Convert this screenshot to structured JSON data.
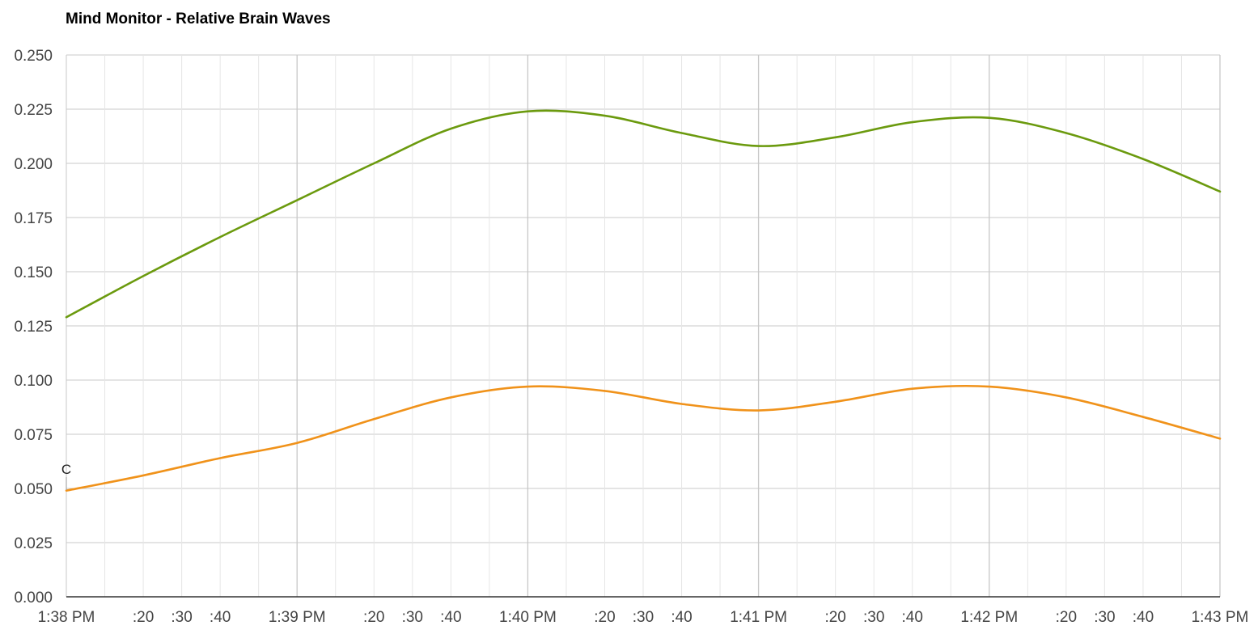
{
  "chart_data": {
    "type": "line",
    "title": "Mind Monitor - Relative Brain Waves",
    "xlabel": "",
    "ylabel": "",
    "x_unit": "time",
    "x_range": [
      "1:38 PM",
      "1:43 PM"
    ],
    "ylim": [
      0,
      0.25
    ],
    "grid": true,
    "legend": "none",
    "y_ticks": [
      "0.000",
      "0.025",
      "0.050",
      "0.075",
      "0.100",
      "0.125",
      "0.150",
      "0.175",
      "0.200",
      "0.225",
      "0.250"
    ],
    "x_ticks": [
      {
        "t": "1:38:00",
        "label": "1:38 PM",
        "major": true
      },
      {
        "t": "1:38:10",
        "label": "",
        "major": false
      },
      {
        "t": "1:38:20",
        "label": ":20",
        "major": false
      },
      {
        "t": "1:38:30",
        "label": ":30",
        "major": false
      },
      {
        "t": "1:38:40",
        "label": ":40",
        "major": false
      },
      {
        "t": "1:38:50",
        "label": "",
        "major": false
      },
      {
        "t": "1:39:00",
        "label": "1:39 PM",
        "major": true
      },
      {
        "t": "1:39:10",
        "label": "",
        "major": false
      },
      {
        "t": "1:39:20",
        "label": ":20",
        "major": false
      },
      {
        "t": "1:39:30",
        "label": ":30",
        "major": false
      },
      {
        "t": "1:39:40",
        "label": ":40",
        "major": false
      },
      {
        "t": "1:39:50",
        "label": "",
        "major": false
      },
      {
        "t": "1:40:00",
        "label": "1:40 PM",
        "major": true
      },
      {
        "t": "1:40:10",
        "label": "",
        "major": false
      },
      {
        "t": "1:40:20",
        "label": ":20",
        "major": false
      },
      {
        "t": "1:40:30",
        "label": ":30",
        "major": false
      },
      {
        "t": "1:40:40",
        "label": ":40",
        "major": false
      },
      {
        "t": "1:40:50",
        "label": "",
        "major": false
      },
      {
        "t": "1:41:00",
        "label": "1:41 PM",
        "major": true
      },
      {
        "t": "1:41:10",
        "label": "",
        "major": false
      },
      {
        "t": "1:41:20",
        "label": ":20",
        "major": false
      },
      {
        "t": "1:41:30",
        "label": ":30",
        "major": false
      },
      {
        "t": "1:41:40",
        "label": ":40",
        "major": false
      },
      {
        "t": "1:41:50",
        "label": "",
        "major": false
      },
      {
        "t": "1:42:00",
        "label": "1:42 PM",
        "major": true
      },
      {
        "t": "1:42:10",
        "label": "",
        "major": false
      },
      {
        "t": "1:42:20",
        "label": ":20",
        "major": false
      },
      {
        "t": "1:42:30",
        "label": ":30",
        "major": false
      },
      {
        "t": "1:42:40",
        "label": ":40",
        "major": false
      },
      {
        "t": "1:42:50",
        "label": "",
        "major": false
      },
      {
        "t": "1:43:00",
        "label": "1:43 PM",
        "major": true
      }
    ],
    "series": [
      {
        "color": "#6b9a0e",
        "points": [
          {
            "t": "1:38:00",
            "y": 0.129
          },
          {
            "t": "1:38:20",
            "y": 0.148
          },
          {
            "t": "1:38:40",
            "y": 0.166
          },
          {
            "t": "1:39:00",
            "y": 0.183
          },
          {
            "t": "1:39:20",
            "y": 0.2
          },
          {
            "t": "1:39:40",
            "y": 0.216
          },
          {
            "t": "1:40:00",
            "y": 0.224
          },
          {
            "t": "1:40:20",
            "y": 0.222
          },
          {
            "t": "1:40:40",
            "y": 0.214
          },
          {
            "t": "1:41:00",
            "y": 0.208
          },
          {
            "t": "1:41:20",
            "y": 0.212
          },
          {
            "t": "1:41:40",
            "y": 0.219
          },
          {
            "t": "1:42:00",
            "y": 0.221
          },
          {
            "t": "1:42:20",
            "y": 0.214
          },
          {
            "t": "1:42:40",
            "y": 0.202
          },
          {
            "t": "1:43:00",
            "y": 0.187
          }
        ]
      },
      {
        "color": "#f0921a",
        "points": [
          {
            "t": "1:38:00",
            "y": 0.049
          },
          {
            "t": "1:38:20",
            "y": 0.056
          },
          {
            "t": "1:38:40",
            "y": 0.064
          },
          {
            "t": "1:39:00",
            "y": 0.071
          },
          {
            "t": "1:39:20",
            "y": 0.082
          },
          {
            "t": "1:39:40",
            "y": 0.092
          },
          {
            "t": "1:40:00",
            "y": 0.097
          },
          {
            "t": "1:40:20",
            "y": 0.095
          },
          {
            "t": "1:40:40",
            "y": 0.089
          },
          {
            "t": "1:41:00",
            "y": 0.086
          },
          {
            "t": "1:41:20",
            "y": 0.09
          },
          {
            "t": "1:41:40",
            "y": 0.096
          },
          {
            "t": "1:42:00",
            "y": 0.097
          },
          {
            "t": "1:42:20",
            "y": 0.092
          },
          {
            "t": "1:42:40",
            "y": 0.083
          },
          {
            "t": "1:43:00",
            "y": 0.073
          }
        ]
      }
    ],
    "annotations": [
      {
        "t": "1:38:00",
        "label": "C"
      }
    ],
    "colors": {
      "grid_major": "#c8c8c8",
      "grid_minor": "#e6e6e6",
      "axis": "#333333",
      "tick_text": "#444444"
    }
  }
}
